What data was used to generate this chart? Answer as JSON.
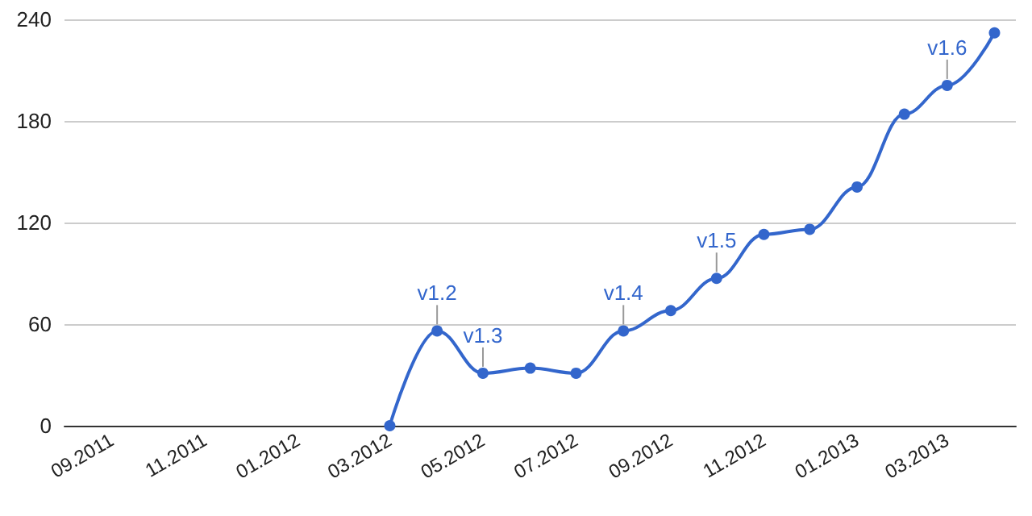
{
  "chart_data": {
    "type": "line",
    "x": [
      "2012-03",
      "2012-04",
      "2012-05",
      "2012-06",
      "2012-07",
      "2012-08",
      "2012-09",
      "2012-10",
      "2012-11",
      "2012-12",
      "2013-01",
      "2013-02",
      "2013-03",
      "2013-04"
    ],
    "series": [
      {
        "color": "#3366cc",
        "values": [
          0,
          56,
          31,
          34,
          31,
          56,
          68,
          87,
          113,
          116,
          141,
          184,
          201,
          232
        ]
      }
    ],
    "xlim": [
      "2011-08",
      "2013-04-15"
    ],
    "xticks": [
      {
        "value": "2011-09",
        "label": "09.2011"
      },
      {
        "value": "2011-11",
        "label": "11.2011"
      },
      {
        "value": "2012-01",
        "label": "01.2012"
      },
      {
        "value": "2012-03",
        "label": "03.2012"
      },
      {
        "value": "2012-05",
        "label": "05.2012"
      },
      {
        "value": "2012-07",
        "label": "07.2012"
      },
      {
        "value": "2012-09",
        "label": "09.2012"
      },
      {
        "value": "2012-11",
        "label": "11.2012"
      },
      {
        "value": "2013-01",
        "label": "01.2013"
      },
      {
        "value": "2013-03",
        "label": "03.2013"
      }
    ],
    "ylim": [
      0,
      240
    ],
    "yticks": [
      0,
      60,
      120,
      180,
      240
    ],
    "grid": "y",
    "marker": "circle",
    "line_style": "solid",
    "annotations": [
      {
        "text": "v1.2",
        "x": "2012-04",
        "y": 56
      },
      {
        "text": "v1.3",
        "x": "2012-05",
        "y": 31
      },
      {
        "text": "v1.4",
        "x": "2012-08",
        "y": 56
      },
      {
        "text": "v1.5",
        "x": "2012-10",
        "y": 87
      },
      {
        "text": "v1.6",
        "x": "2013-03",
        "y": 201
      }
    ]
  }
}
